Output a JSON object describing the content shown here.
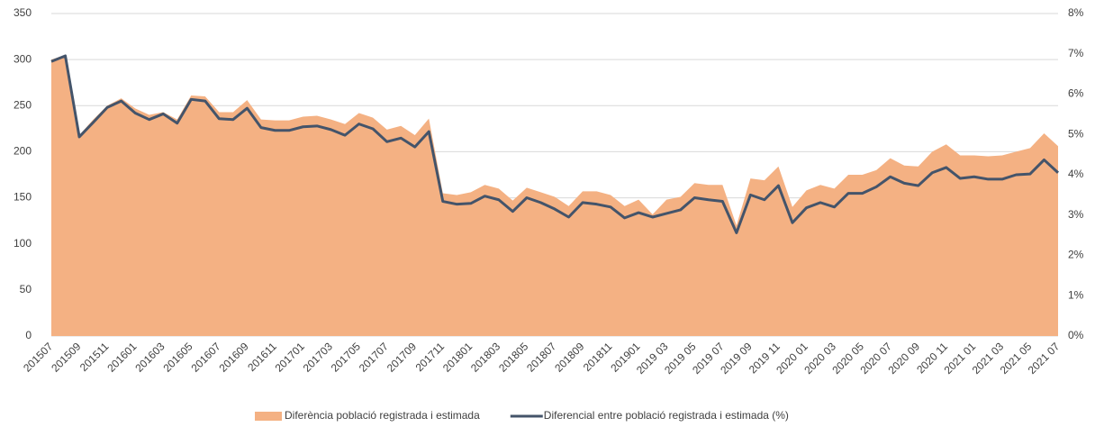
{
  "chart_data": {
    "type": "area_line",
    "categories": [
      "201507",
      null,
      "201509",
      null,
      "201511",
      null,
      "201601",
      null,
      "201603",
      null,
      "201605",
      null,
      "201607",
      null,
      "201609",
      null,
      "201611",
      null,
      "201701",
      null,
      "201703",
      null,
      "201705",
      null,
      "201707",
      null,
      "201709",
      null,
      "201711",
      null,
      "201801",
      null,
      "201803",
      null,
      "201805",
      null,
      "201807",
      null,
      "201809",
      null,
      "201811",
      null,
      "201901",
      null,
      "2019 03",
      null,
      "2019 05",
      null,
      "2019 07",
      null,
      "2019 09",
      null,
      "2019 11",
      null,
      "2020 01",
      null,
      "2020 03",
      null,
      "2020 05",
      null,
      "2020 07",
      null,
      "2020 09",
      null,
      "2020 11",
      null,
      "2021 01",
      null,
      "2021 03",
      null,
      "2021 05",
      null,
      "2021 07"
    ],
    "series": [
      {
        "name": "Diferència població registrada i estimada",
        "color": "#f4b183",
        "kind": "area",
        "values": [
          300,
          305,
          218,
          235,
          250,
          258,
          247,
          240,
          243,
          235,
          261,
          260,
          243,
          243,
          256,
          235,
          234,
          234,
          238,
          239,
          235,
          230,
          242,
          237,
          224,
          228,
          218,
          236,
          155,
          153,
          156,
          164,
          160,
          147,
          161,
          156,
          151,
          141,
          157,
          157,
          153,
          141,
          148,
          132,
          148,
          151,
          166,
          164,
          164,
          120,
          171,
          169,
          184,
          140,
          158,
          164,
          160,
          175,
          175,
          180,
          193,
          185,
          184,
          200,
          208,
          196,
          196,
          195,
          196,
          200,
          204,
          220,
          206
        ]
      },
      {
        "name": "Diferencial entre població registrada i estimada (%)",
        "color": "#44546a",
        "kind": "line",
        "axis": "y2",
        "values": [
          6.81,
          6.95,
          4.94,
          5.3,
          5.67,
          5.83,
          5.53,
          5.37,
          5.51,
          5.28,
          5.87,
          5.83,
          5.39,
          5.37,
          5.65,
          5.17,
          5.1,
          5.1,
          5.19,
          5.21,
          5.12,
          4.98,
          5.26,
          5.14,
          4.82,
          4.91,
          4.69,
          5.07,
          3.34,
          3.27,
          3.29,
          3.47,
          3.38,
          3.09,
          3.43,
          3.31,
          3.15,
          2.95,
          3.31,
          3.27,
          3.2,
          2.93,
          3.06,
          2.95,
          3.04,
          3.13,
          3.43,
          3.38,
          3.34,
          2.56,
          3.5,
          3.38,
          3.73,
          2.81,
          3.18,
          3.31,
          3.2,
          3.54,
          3.54,
          3.7,
          3.95,
          3.79,
          3.73,
          4.05,
          4.18,
          3.91,
          3.95,
          3.89,
          3.89,
          4.0,
          4.02,
          4.37,
          4.05
        ]
      }
    ],
    "ylim": [
      0,
      350
    ],
    "yticks": [
      0,
      50,
      100,
      150,
      200,
      250,
      300,
      350
    ],
    "y2lim": [
      0,
      8
    ],
    "y2ticks": [
      {
        "value": 0,
        "label": "0%"
      },
      {
        "value": 1,
        "label": "1%"
      },
      {
        "value": 2,
        "label": "2%"
      },
      {
        "value": 3,
        "label": "3%"
      },
      {
        "value": 4,
        "label": "4%"
      },
      {
        "value": 5,
        "label": "5%"
      },
      {
        "value": 6,
        "label": "6%"
      },
      {
        "value": 7,
        "label": "7%"
      },
      {
        "value": 8,
        "label": "8%"
      }
    ],
    "grid": true,
    "legend": "bottom"
  }
}
